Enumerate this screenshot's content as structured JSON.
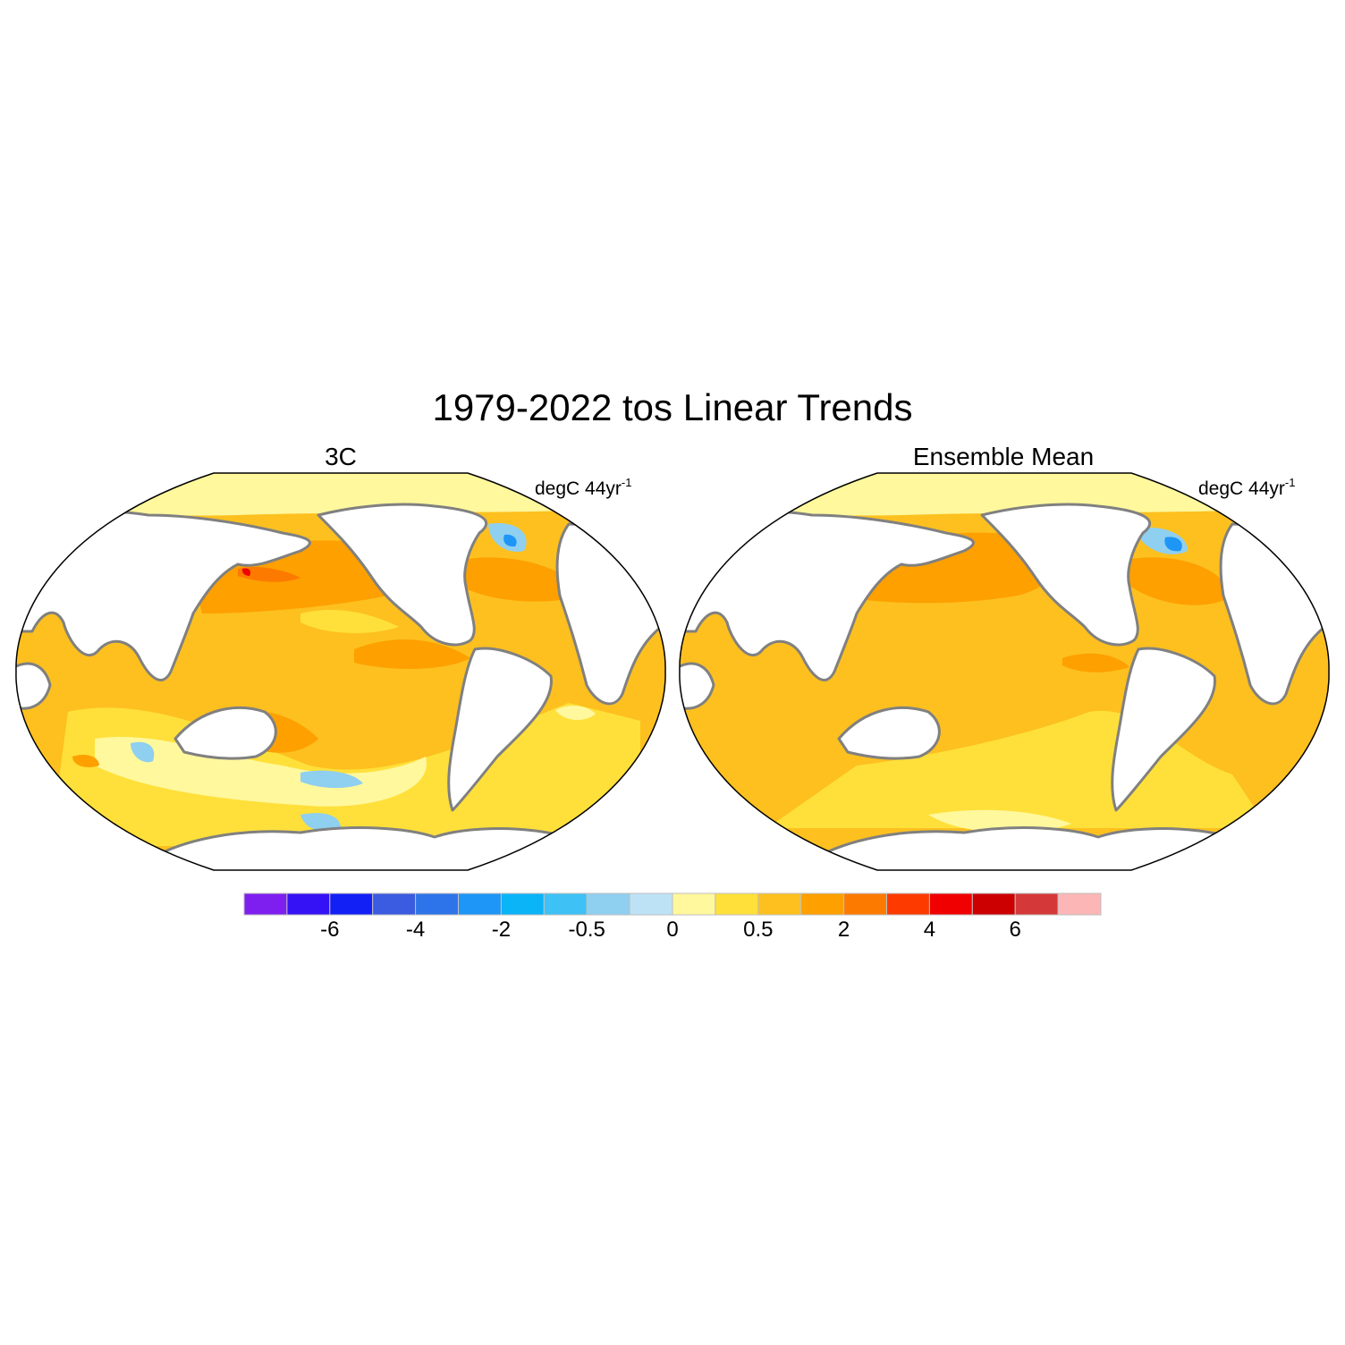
{
  "title": "1979-2022 tos Linear Trends",
  "panels": [
    {
      "title": "3C",
      "units": "degC 44yr",
      "units_exp": "-1"
    },
    {
      "title": "Ensemble Mean",
      "units": "degC 44yr",
      "units_exp": "-1"
    }
  ],
  "colorbar": {
    "colors": [
      "#7f1fef",
      "#3512f5",
      "#1220f5",
      "#3b5be0",
      "#2d74ea",
      "#1e96f7",
      "#0bb3f7",
      "#3ec2f5",
      "#8fcff0",
      "#bde2f6",
      "#fff89d",
      "#ffe03a",
      "#fdc01f",
      "#fda000",
      "#fd7a00",
      "#fd3a00",
      "#f00000",
      "#cc0000",
      "#d53838",
      "#fdb6b6"
    ],
    "tick_labels": [
      "-6",
      "-4",
      "-2",
      "-0.5",
      "0",
      "0.5",
      "2",
      "4",
      "6"
    ]
  },
  "colors": {
    "land": "#ffffff",
    "coastline": "#808080",
    "ocean_base": "#fdc01f",
    "map_border": "#000000"
  }
}
